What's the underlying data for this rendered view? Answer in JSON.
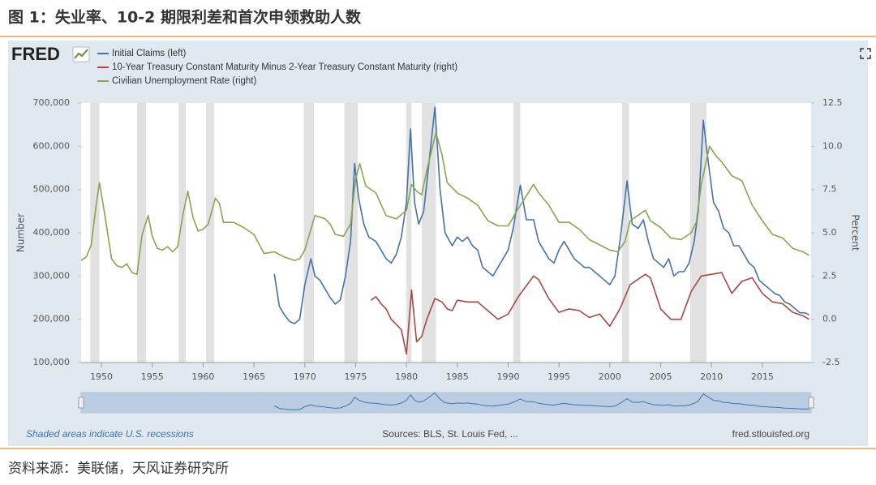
{
  "title": "图 1：失业率、10-2 期限利差和首次申领救助人数",
  "source": "资料来源：美联储，天风证券研究所",
  "chart_data": {
    "type": "line",
    "logo": "FRED",
    "ylabel": "Number",
    "y2label": "Percent",
    "note": "Shaded areas indicate U.S. recessions",
    "sources": "Sources: BLS, St. Louis Fed, ...",
    "site": "fred.stlouisfed.org",
    "grid": false,
    "xlim": [
      1948,
      2019.8
    ],
    "xticks": [
      1950,
      1955,
      1960,
      1965,
      1970,
      1975,
      1980,
      1985,
      1990,
      1995,
      2000,
      2005,
      2010,
      2015
    ],
    "ylim": [
      100000,
      700000
    ],
    "yticks": [
      {
        "value": 100000,
        "label": "100,000"
      },
      {
        "value": 200000,
        "label": "200,000"
      },
      {
        "value": 300000,
        "label": "300,000"
      },
      {
        "value": 400000,
        "label": "400,000"
      },
      {
        "value": 500000,
        "label": "500,000"
      },
      {
        "value": 600000,
        "label": "600,000"
      },
      {
        "value": 700000,
        "label": "700,000"
      }
    ],
    "y2lim": [
      -2.5,
      12.5
    ],
    "y2ticks": [
      -2.5,
      {
        "value": 0,
        "label": "0.0"
      },
      2.5,
      {
        "value": 5,
        "label": "5.0"
      },
      7.5,
      {
        "value": 10,
        "label": "10.0"
      },
      12.5
    ],
    "recession_color": "#e1e1e1",
    "recessions": [
      [
        1948.9,
        1949.8
      ],
      [
        1953.5,
        1954.4
      ],
      [
        1957.6,
        1958.3
      ],
      [
        1960.3,
        1961.1
      ],
      [
        1969.9,
        1970.9
      ],
      [
        1973.9,
        1975.2
      ],
      [
        1980.0,
        1980.5
      ],
      [
        1981.5,
        1982.9
      ],
      [
        1990.5,
        1991.2
      ],
      [
        2001.2,
        2001.9
      ],
      [
        2007.9,
        2009.5
      ]
    ],
    "series": [
      {
        "name": "Initial Claims (left)",
        "color": "#4572a7",
        "axis": "y",
        "x": [
          1967.0,
          1967.5,
          1968.0,
          1968.5,
          1969.0,
          1969.5,
          1970.0,
          1970.6,
          1971.0,
          1971.5,
          1972.0,
          1972.5,
          1973.0,
          1973.5,
          1974.0,
          1974.5,
          1974.9,
          1975.3,
          1975.8,
          1976.3,
          1977.0,
          1977.5,
          1978.0,
          1978.5,
          1979.0,
          1979.5,
          1980.0,
          1980.4,
          1980.8,
          1981.2,
          1981.7,
          1982.3,
          1982.8,
          1983.3,
          1983.8,
          1984.5,
          1985.0,
          1985.5,
          1986.0,
          1986.5,
          1987.0,
          1987.5,
          1988.0,
          1988.5,
          1989.0,
          1989.5,
          1990.0,
          1990.5,
          1991.2,
          1991.8,
          1992.5,
          1993.0,
          1993.5,
          1994.0,
          1994.5,
          1995.0,
          1995.5,
          1996.0,
          1996.5,
          1997.0,
          1997.5,
          1998.0,
          1998.5,
          1999.0,
          1999.5,
          2000.0,
          2000.5,
          2001.0,
          2001.7,
          2002.2,
          2002.8,
          2003.3,
          2003.8,
          2004.3,
          2004.8,
          2005.3,
          2005.8,
          2006.3,
          2006.8,
          2007.3,
          2007.8,
          2008.3,
          2008.7,
          2009.2,
          2009.7,
          2010.2,
          2010.7,
          2011.2,
          2011.7,
          2012.2,
          2012.7,
          2013.2,
          2013.7,
          2014.2,
          2014.7,
          2015.2,
          2015.7,
          2016.2,
          2016.7,
          2017.2,
          2017.7,
          2018.2,
          2018.7,
          2019.2,
          2019.6
        ],
        "values": [
          305000,
          230000,
          210000,
          195000,
          190000,
          200000,
          280000,
          340000,
          300000,
          290000,
          270000,
          250000,
          235000,
          245000,
          300000,
          380000,
          560000,
          480000,
          420000,
          390000,
          380000,
          360000,
          340000,
          330000,
          350000,
          390000,
          470000,
          640000,
          470000,
          420000,
          450000,
          580000,
          690000,
          500000,
          400000,
          370000,
          390000,
          380000,
          390000,
          370000,
          360000,
          320000,
          310000,
          300000,
          320000,
          340000,
          360000,
          410000,
          510000,
          430000,
          430000,
          380000,
          360000,
          340000,
          330000,
          360000,
          380000,
          360000,
          340000,
          330000,
          320000,
          320000,
          310000,
          300000,
          290000,
          280000,
          300000,
          380000,
          520000,
          420000,
          410000,
          430000,
          380000,
          340000,
          330000,
          320000,
          340000,
          300000,
          310000,
          310000,
          330000,
          380000,
          450000,
          660000,
          560000,
          470000,
          450000,
          410000,
          400000,
          370000,
          370000,
          350000,
          330000,
          320000,
          290000,
          280000,
          270000,
          260000,
          255000,
          240000,
          235000,
          225000,
          215000,
          215000,
          210000
        ]
      },
      {
        "name": "10-Year Treasury Constant Maturity Minus 2-Year Treasury Constant Maturity (right)",
        "color": "#aa4643",
        "axis": "y2",
        "x": [
          1976.5,
          1977.0,
          1977.5,
          1978.0,
          1978.5,
          1979.0,
          1979.5,
          1980.0,
          1980.5,
          1981.0,
          1981.5,
          1982.0,
          1982.8,
          1983.5,
          1984.0,
          1984.5,
          1985.0,
          1986.0,
          1987.0,
          1988.0,
          1989.0,
          1990.0,
          1991.0,
          1992.5,
          1993.0,
          1994.0,
          1995.0,
          1996.0,
          1997.0,
          1998.0,
          1999.0,
          2000.0,
          2001.0,
          2002.0,
          2003.5,
          2004.0,
          2005.0,
          2006.0,
          2007.0,
          2008.0,
          2009.0,
          2010.0,
          2011.0,
          2012.0,
          2013.0,
          2014.0,
          2015.0,
          2016.0,
          2017.0,
          2018.0,
          2019.0,
          2019.6
        ],
        "values": [
          1.1,
          1.3,
          0.9,
          0.6,
          0.0,
          -0.3,
          -0.6,
          -2.0,
          1.7,
          -1.3,
          -1.0,
          0.0,
          1.2,
          1.0,
          0.6,
          0.5,
          1.1,
          1.0,
          1.0,
          0.5,
          0.0,
          0.3,
          1.3,
          2.5,
          2.3,
          1.2,
          0.4,
          0.6,
          0.5,
          0.1,
          0.3,
          -0.4,
          0.6,
          2.0,
          2.6,
          2.4,
          0.6,
          0.0,
          0.0,
          1.6,
          2.5,
          2.6,
          2.7,
          1.5,
          2.2,
          2.4,
          1.5,
          1.0,
          0.9,
          0.4,
          0.2,
          0.0
        ]
      },
      {
        "name": "Civilian Unemployment Rate (right)",
        "color": "#89a54e",
        "axis": "y2",
        "x": [
          1948.0,
          1948.5,
          1949.0,
          1949.5,
          1949.8,
          1950.2,
          1950.6,
          1951.0,
          1951.5,
          1952.0,
          1952.5,
          1953.0,
          1953.5,
          1954.0,
          1954.6,
          1955.0,
          1955.5,
          1956.0,
          1956.5,
          1957.0,
          1957.5,
          1958.0,
          1958.5,
          1959.0,
          1959.5,
          1960.0,
          1960.5,
          1961.2,
          1961.6,
          1962.0,
          1963.0,
          1964.0,
          1965.0,
          1966.0,
          1967.0,
          1968.0,
          1969.0,
          1969.5,
          1970.0,
          1970.5,
          1971.0,
          1972.0,
          1972.5,
          1973.0,
          1973.8,
          1974.5,
          1975.0,
          1975.4,
          1976.0,
          1977.0,
          1978.0,
          1979.0,
          1980.0,
          1980.5,
          1981.0,
          1981.5,
          1982.0,
          1982.9,
          1983.5,
          1984.0,
          1985.0,
          1986.0,
          1987.0,
          1988.0,
          1989.0,
          1990.0,
          1991.0,
          1992.5,
          1993.0,
          1994.0,
          1995.0,
          1996.0,
          1997.0,
          1998.0,
          1999.0,
          2000.0,
          2000.8,
          2001.5,
          2002.0,
          2003.5,
          2004.0,
          2005.0,
          2006.0,
          2007.0,
          2008.0,
          2008.5,
          2009.0,
          2009.8,
          2010.5,
          2011.0,
          2012.0,
          2013.0,
          2014.0,
          2015.0,
          2016.0,
          2017.0,
          2018.0,
          2019.0,
          2019.6
        ],
        "values": [
          3.4,
          3.6,
          4.3,
          6.7,
          7.9,
          6.5,
          5.0,
          3.5,
          3.1,
          3.0,
          3.2,
          2.7,
          2.6,
          4.9,
          6.0,
          4.8,
          4.1,
          4.0,
          4.2,
          3.9,
          4.2,
          6.0,
          7.4,
          5.9,
          5.1,
          5.2,
          5.5,
          7.0,
          6.7,
          5.6,
          5.6,
          5.3,
          4.9,
          3.8,
          3.9,
          3.6,
          3.4,
          3.5,
          4.0,
          5.0,
          6.0,
          5.8,
          5.5,
          4.9,
          4.8,
          5.5,
          8.1,
          9.0,
          7.7,
          7.3,
          6.0,
          5.8,
          6.3,
          7.8,
          7.4,
          7.2,
          8.6,
          10.8,
          9.5,
          7.9,
          7.3,
          7.0,
          6.6,
          5.7,
          5.4,
          5.4,
          6.4,
          7.8,
          7.3,
          6.6,
          5.6,
          5.6,
          5.2,
          4.6,
          4.3,
          4.0,
          3.9,
          4.5,
          5.7,
          6.3,
          5.7,
          5.3,
          4.7,
          4.6,
          5.0,
          5.6,
          7.8,
          10.0,
          9.4,
          9.1,
          8.3,
          8.0,
          6.6,
          5.7,
          4.9,
          4.7,
          4.1,
          3.9,
          3.7
        ]
      }
    ]
  }
}
